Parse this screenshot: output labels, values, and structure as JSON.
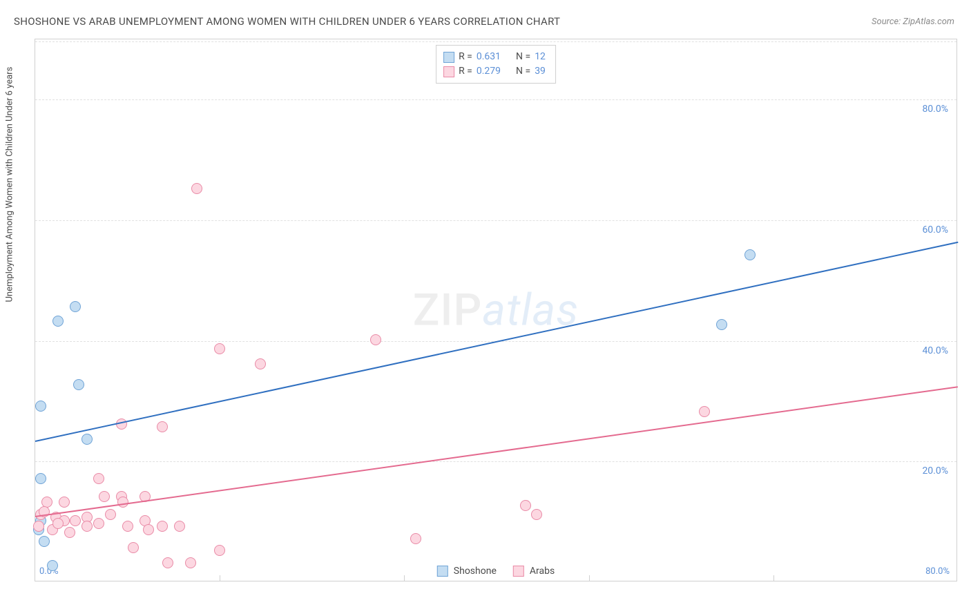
{
  "title": "SHOSHONE VS ARAB UNEMPLOYMENT AMONG WOMEN WITH CHILDREN UNDER 6 YEARS CORRELATION CHART",
  "source": "Source: ZipAtlas.com",
  "ylabel": "Unemployment Among Women with Children Under 6 years",
  "watermark_zip": "ZIP",
  "watermark_atlas": "atlas",
  "chart": {
    "type": "scatter",
    "background_color": "#ffffff",
    "border_color": "#d0d0d0",
    "grid_color": "#e0e0e0",
    "label_color": "#5b8fd6",
    "title_color": "#4a4a4a",
    "xlim": [
      0,
      80
    ],
    "ylim": [
      0,
      90
    ],
    "ytick_values": [
      20,
      40,
      60,
      80
    ],
    "ytick_labels": [
      "20.0%",
      "40.0%",
      "60.0%",
      "80.0%"
    ],
    "xtick_major": [
      0,
      80
    ],
    "xtick_labels": [
      "0.0%",
      "80.0%"
    ],
    "xtick_minor": [
      16,
      32,
      48,
      64
    ],
    "marker_radius": 8,
    "marker_border_width": 1.2,
    "line_width": 2,
    "series": [
      {
        "name": "Shoshone",
        "marker_fill": "#c4ddf2",
        "marker_stroke": "#6fa3d6",
        "line_color": "#2f6fc0",
        "R": "0.631",
        "N": "12",
        "trend": {
          "x1": 0,
          "y1": 23.5,
          "x2": 80,
          "y2": 56.5
        },
        "points": [
          {
            "x": 0.5,
            "y": 29
          },
          {
            "x": 2.0,
            "y": 43
          },
          {
            "x": 3.5,
            "y": 45.5
          },
          {
            "x": 3.8,
            "y": 32.5
          },
          {
            "x": 4.5,
            "y": 23.5
          },
          {
            "x": 0.5,
            "y": 17
          },
          {
            "x": 0.3,
            "y": 8.5
          },
          {
            "x": 0.8,
            "y": 6.5
          },
          {
            "x": 1.5,
            "y": 2.5
          },
          {
            "x": 59.5,
            "y": 42.5
          },
          {
            "x": 62,
            "y": 54
          },
          {
            "x": 0.5,
            "y": 10
          }
        ]
      },
      {
        "name": "Arabs",
        "marker_fill": "#fcd7e1",
        "marker_stroke": "#e98aa6",
        "line_color": "#e46a8f",
        "R": "0.279",
        "N": "39",
        "trend": {
          "x1": 0,
          "y1": 11,
          "x2": 80,
          "y2": 32.5
        },
        "points": [
          {
            "x": 14,
            "y": 65
          },
          {
            "x": 16,
            "y": 38.5
          },
          {
            "x": 19.5,
            "y": 36
          },
          {
            "x": 7.5,
            "y": 26
          },
          {
            "x": 11,
            "y": 25.5
          },
          {
            "x": 29.5,
            "y": 40
          },
          {
            "x": 58,
            "y": 28
          },
          {
            "x": 33,
            "y": 7
          },
          {
            "x": 42.5,
            "y": 12.5
          },
          {
            "x": 43.5,
            "y": 11
          },
          {
            "x": 5.5,
            "y": 17
          },
          {
            "x": 2.5,
            "y": 13
          },
          {
            "x": 1,
            "y": 13
          },
          {
            "x": 0.5,
            "y": 11
          },
          {
            "x": 1.8,
            "y": 10.5
          },
          {
            "x": 2.5,
            "y": 10
          },
          {
            "x": 3.5,
            "y": 10
          },
          {
            "x": 4.5,
            "y": 10.5
          },
          {
            "x": 4.5,
            "y": 9
          },
          {
            "x": 5.5,
            "y": 9.5
          },
          {
            "x": 6,
            "y": 14
          },
          {
            "x": 6.5,
            "y": 11
          },
          {
            "x": 7.5,
            "y": 14
          },
          {
            "x": 7.6,
            "y": 13
          },
          {
            "x": 8,
            "y": 9
          },
          {
            "x": 8.5,
            "y": 5.5
          },
          {
            "x": 9.5,
            "y": 14
          },
          {
            "x": 9.5,
            "y": 10
          },
          {
            "x": 9.8,
            "y": 8.5
          },
          {
            "x": 11,
            "y": 9
          },
          {
            "x": 11.5,
            "y": 3
          },
          {
            "x": 12.5,
            "y": 9
          },
          {
            "x": 13.5,
            "y": 3
          },
          {
            "x": 16,
            "y": 5
          },
          {
            "x": 0.3,
            "y": 9
          },
          {
            "x": 1.5,
            "y": 8.5
          },
          {
            "x": 3,
            "y": 8
          },
          {
            "x": 0.8,
            "y": 11.5
          },
          {
            "x": 2,
            "y": 9.5
          }
        ]
      }
    ]
  },
  "legend_labels": {
    "R_prefix": "R  = ",
    "N_prefix": "N  = "
  },
  "series_legend_label_1": "Shoshone",
  "series_legend_label_2": "Arabs"
}
